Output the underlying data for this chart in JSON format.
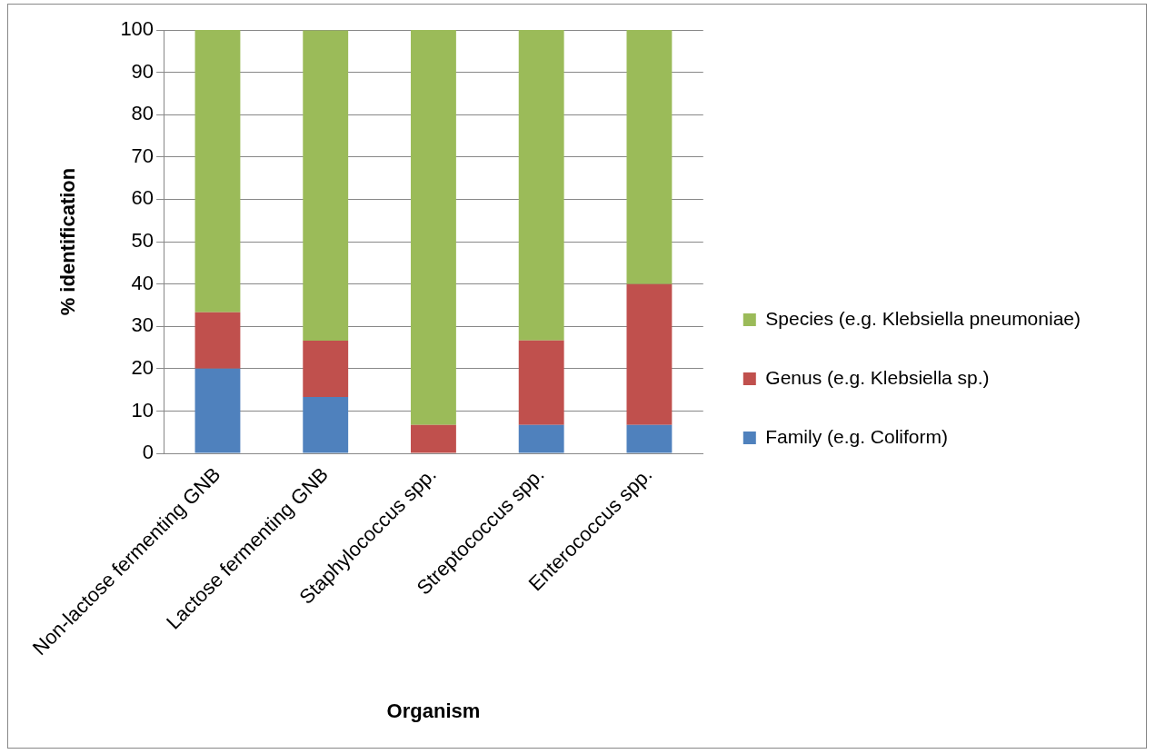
{
  "chart_data": {
    "type": "bar",
    "stacked": true,
    "xlabel": "Organism",
    "ylabel": "% identification",
    "categories": [
      "Non-lactose fermenting GNB",
      "Lactose fermenting GNB",
      "Staphylococcus spp.",
      "Streptococcus spp.",
      "Enterococcus spp."
    ],
    "series": [
      {
        "name": "Family (e.g. Coliform)",
        "color": "#4f81bd",
        "values": [
          20,
          13.3,
          0,
          6.7,
          6.7
        ]
      },
      {
        "name": "Genus (e.g. Klebsiella sp.)",
        "color": "#c0504d",
        "values": [
          13.3,
          13.3,
          6.7,
          20,
          33.3
        ]
      },
      {
        "name": "Species (e.g. Klebsiella pneumoniae)",
        "color": "#9bbb59",
        "values": [
          66.7,
          73.3,
          93.3,
          73.3,
          60
        ]
      }
    ],
    "ylim": [
      0,
      100
    ],
    "yticks": [
      0,
      10,
      20,
      30,
      40,
      50,
      60,
      70,
      80,
      90,
      100
    ],
    "grid": "y",
    "legend": "right"
  }
}
